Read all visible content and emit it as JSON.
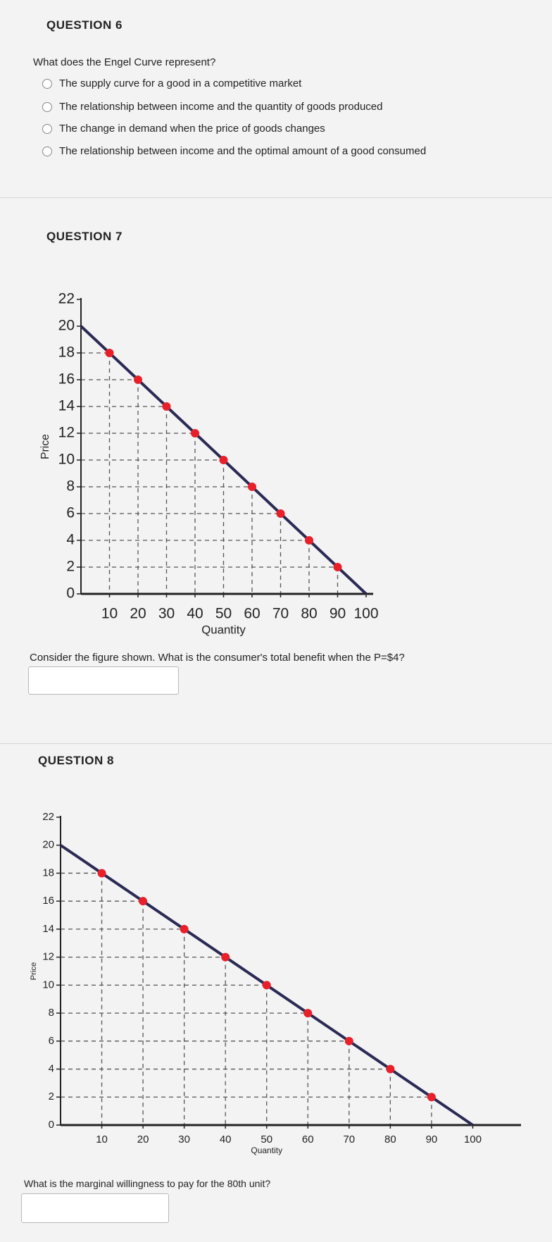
{
  "question6": {
    "heading": "QUESTION 6",
    "text": "What does the Engel Curve represent?",
    "options": [
      "The supply curve for a good in a competitive market",
      "The relationship between income and the quantity of goods produced",
      "The change in demand when the price of goods changes",
      "The relationship between income and the optimal amount of a good consumed"
    ]
  },
  "question7": {
    "heading": "QUESTION 7",
    "text": "Consider the figure shown. What is the consumer's total benefit when the P=$4?"
  },
  "question8": {
    "heading": "QUESTION 8",
    "text": "What is the marginal willingness to pay for the 80th unit?"
  },
  "chart_data": [
    {
      "type": "line",
      "x_label": "Quantity",
      "y_label": "Price",
      "xlim": [
        0,
        100
      ],
      "ylim": [
        0,
        22
      ],
      "xticks": [
        10,
        20,
        30,
        40,
        50,
        60,
        70,
        80,
        90,
        100
      ],
      "yticks": [
        0,
        2,
        4,
        6,
        8,
        10,
        12,
        14,
        16,
        18,
        20,
        22
      ],
      "drop_lines": true,
      "series": [
        {
          "style": "line",
          "color": "#2a2a55",
          "x": [
            0,
            100
          ],
          "values": [
            20,
            0
          ]
        },
        {
          "style": "markers",
          "color": "#e8202a",
          "x": [
            10,
            20,
            30,
            40,
            50,
            60,
            70,
            80,
            90
          ],
          "values": [
            18,
            16,
            14,
            12,
            10,
            8,
            6,
            4,
            2
          ]
        }
      ]
    },
    {
      "type": "line",
      "x_label": "Quantity",
      "y_label": "Price",
      "xlim": [
        0,
        110
      ],
      "ylim": [
        0,
        22
      ],
      "xticks": [
        10,
        20,
        30,
        40,
        50,
        60,
        70,
        80,
        90,
        100
      ],
      "yticks": [
        0,
        2,
        4,
        6,
        8,
        10,
        12,
        14,
        16,
        18,
        20,
        22
      ],
      "drop_lines": true,
      "series": [
        {
          "style": "line",
          "color": "#2a2a55",
          "x": [
            0,
            100
          ],
          "values": [
            20,
            0
          ]
        },
        {
          "style": "markers",
          "color": "#e8202a",
          "x": [
            10,
            20,
            30,
            40,
            50,
            60,
            70,
            80,
            90
          ],
          "values": [
            18,
            16,
            14,
            12,
            10,
            8,
            6,
            4,
            2
          ]
        }
      ]
    }
  ]
}
